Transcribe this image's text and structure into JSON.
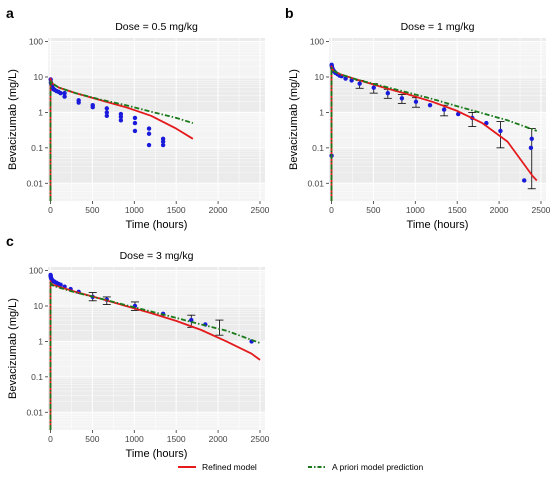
{
  "figure": {
    "panels_letters": [
      "a",
      "b",
      "c"
    ],
    "legend": {
      "placement": "bottom",
      "entries": [
        {
          "label": "Refined model",
          "color": "#e41a1c",
          "style": "solid"
        },
        {
          "label": "A priori model prediction",
          "color": "#1a7a1a",
          "style": "dashdot"
        }
      ]
    },
    "colors": {
      "observed": "#1a1adb",
      "refined": "#e41a1c",
      "apriori": "#1a7a1a",
      "panel_bg": "#ebebeb"
    }
  },
  "chart_data": [
    {
      "type": "scatter",
      "panel": "a",
      "title": "Dose = 0.5 mg/kg",
      "xlabel": "Time (hours)",
      "ylabel": "Bevacizumab (mg/L)",
      "xlim": [
        -30,
        2560
      ],
      "ylim_log10": [
        -2.5,
        2.1
      ],
      "y_scale": "log10",
      "xticks": [
        0,
        500,
        1000,
        1500,
        2000,
        2500
      ],
      "yticks": [
        0.01,
        0.1,
        1,
        10,
        100
      ],
      "ytick_labels": [
        "0.01",
        "0.1",
        "1",
        "10",
        "100"
      ],
      "observed": {
        "x": [
          2,
          5,
          8,
          12,
          18,
          24,
          30,
          40,
          50,
          72,
          96,
          120,
          168,
          168,
          336,
          336,
          504,
          504,
          672,
          672,
          672,
          840,
          840,
          840,
          1008,
          1008,
          1008,
          1176,
          1176,
          1176,
          1344,
          1344,
          1344
        ],
        "y": [
          8.5,
          7.0,
          6.5,
          6.0,
          5.5,
          5.0,
          4.6,
          4.5,
          4.3,
          4.0,
          3.8,
          3.5,
          2.8,
          3.5,
          2.2,
          1.9,
          1.6,
          1.4,
          1.3,
          0.8,
          1.0,
          0.9,
          0.6,
          0.75,
          0.7,
          0.3,
          0.5,
          0.35,
          0.12,
          0.25,
          0.15,
          0.12,
          0.18
        ]
      },
      "series": [
        {
          "name": "Refined model",
          "x": [
            0,
            0.1,
            5,
            24,
            100,
            300,
            600,
            900,
            1200,
            1500,
            1700
          ],
          "y": [
            0.003,
            9.0,
            8.0,
            6.5,
            5.0,
            3.5,
            2.2,
            1.4,
            0.8,
            0.35,
            0.18
          ]
        },
        {
          "name": "A priori model prediction",
          "x": [
            0,
            0.1,
            5,
            24,
            100,
            300,
            600,
            900,
            1200,
            1500,
            1700
          ],
          "y": [
            0.003,
            8.0,
            7.5,
            6.5,
            5.0,
            3.5,
            2.3,
            1.6,
            1.05,
            0.7,
            0.5
          ]
        }
      ]
    },
    {
      "type": "scatter",
      "panel": "b",
      "title": "Dose = 1 mg/kg",
      "xlabel": "Time (hours)",
      "ylabel": "Bevacizumab (mg/L)",
      "xlim": [
        -30,
        2560
      ],
      "ylim_log10": [
        -2.5,
        2.1
      ],
      "y_scale": "log10",
      "xticks": [
        0,
        500,
        1000,
        1500,
        2000,
        2500
      ],
      "yticks": [
        0.01,
        0.1,
        1,
        10,
        100
      ],
      "ytick_labels": [
        "0.01",
        "0.1",
        "1",
        "10",
        "100"
      ],
      "observed": {
        "x": [
          1,
          2,
          4,
          8,
          12,
          18,
          24,
          36,
          48,
          72,
          96,
          120,
          168,
          240,
          336,
          504,
          672,
          840,
          1008,
          1176,
          1344,
          1512,
          1680,
          1848,
          2016,
          2300,
          2380,
          2390
        ],
        "y": [
          0.06,
          22.0,
          20.0,
          18.0,
          17.0,
          16.0,
          15.0,
          14.0,
          13.0,
          12.0,
          11.0,
          10.5,
          9.0,
          8.0,
          6.5,
          5.0,
          3.5,
          2.5,
          2.0,
          1.6,
          1.2,
          0.9,
          0.7,
          0.5,
          0.3,
          0.012,
          0.1,
          0.18
        ]
      },
      "error_bars": [
        {
          "x": 336,
          "lo": 4.8,
          "hi": 8.0
        },
        {
          "x": 504,
          "lo": 3.5,
          "hi": 6.5
        },
        {
          "x": 672,
          "lo": 2.5,
          "hi": 4.5
        },
        {
          "x": 840,
          "lo": 1.8,
          "hi": 3.2
        },
        {
          "x": 1008,
          "lo": 1.4,
          "hi": 2.6
        },
        {
          "x": 1344,
          "lo": 0.8,
          "hi": 1.6
        },
        {
          "x": 1680,
          "lo": 0.4,
          "hi": 1.0
        },
        {
          "x": 2016,
          "lo": 0.1,
          "hi": 0.55
        },
        {
          "x": 2390,
          "lo": 0.007,
          "hi": 0.35
        }
      ],
      "series": [
        {
          "name": "Refined model",
          "x": [
            0,
            0.1,
            5,
            24,
            100,
            300,
            600,
            900,
            1200,
            1500,
            1800,
            2100,
            2400,
            2450
          ],
          "y": [
            0.003,
            20.0,
            18.0,
            15.0,
            12.0,
            8.5,
            5.2,
            3.3,
            2.0,
            1.1,
            0.5,
            0.15,
            0.016,
            0.012
          ]
        },
        {
          "name": "A priori model prediction",
          "x": [
            0,
            0.1,
            5,
            24,
            100,
            300,
            600,
            900,
            1200,
            1500,
            1800,
            2100,
            2450
          ],
          "y": [
            0.003,
            18.0,
            17.0,
            15.0,
            12.0,
            8.5,
            5.6,
            3.7,
            2.4,
            1.5,
            0.95,
            0.6,
            0.3
          ]
        }
      ]
    },
    {
      "type": "scatter",
      "panel": "c",
      "title": "Dose = 3 mg/kg",
      "xlabel": "Time (hours)",
      "ylabel": "Bevacizumab (mg/L)",
      "xlim": [
        -30,
        2560
      ],
      "ylim_log10": [
        -2.5,
        2.1
      ],
      "y_scale": "log10",
      "xticks": [
        0,
        500,
        1000,
        1500,
        2000,
        2500
      ],
      "yticks": [
        0.01,
        0.1,
        1,
        10,
        100
      ],
      "ytick_labels": [
        "0.01",
        "0.1",
        "1",
        "10",
        "100"
      ],
      "observed": {
        "x": [
          1,
          2,
          4,
          8,
          12,
          18,
          24,
          36,
          48,
          72,
          96,
          120,
          168,
          240,
          336,
          504,
          672,
          1008,
          1344,
          1680,
          1848,
          2400
        ],
        "y": [
          75.0,
          70.0,
          65.0,
          60.0,
          58.0,
          55.0,
          52.0,
          50.0,
          48.0,
          45.0,
          42.0,
          40.0,
          35.0,
          30.0,
          25.0,
          18.0,
          15.0,
          10.0,
          6.0,
          4.0,
          3.0,
          1.0
        ]
      },
      "error_bars": [
        {
          "x": 504,
          "lo": 14.0,
          "hi": 24.0
        },
        {
          "x": 672,
          "lo": 11.0,
          "hi": 18.0
        },
        {
          "x": 1008,
          "lo": 7.5,
          "hi": 13.0
        },
        {
          "x": 1680,
          "lo": 2.5,
          "hi": 5.5
        },
        {
          "x": 2016,
          "lo": 1.5,
          "hi": 4.0
        }
      ],
      "series": [
        {
          "name": "Refined model",
          "x": [
            0,
            0.1,
            5,
            24,
            100,
            300,
            600,
            900,
            1200,
            1500,
            1800,
            2100,
            2400,
            2500
          ],
          "y": [
            0.003,
            50.0,
            45.0,
            40.0,
            35.0,
            25.0,
            16.0,
            10.0,
            6.3,
            3.8,
            2.1,
            1.0,
            0.45,
            0.3
          ]
        },
        {
          "name": "A priori model prediction",
          "x": [
            0,
            0.1,
            5,
            24,
            100,
            300,
            600,
            900,
            1200,
            1500,
            1800,
            2100,
            2500
          ],
          "y": [
            0.003,
            45.0,
            42.0,
            38.0,
            33.0,
            24.0,
            16.0,
            10.5,
            7.0,
            4.6,
            3.0,
            2.0,
            0.9
          ]
        }
      ]
    }
  ]
}
